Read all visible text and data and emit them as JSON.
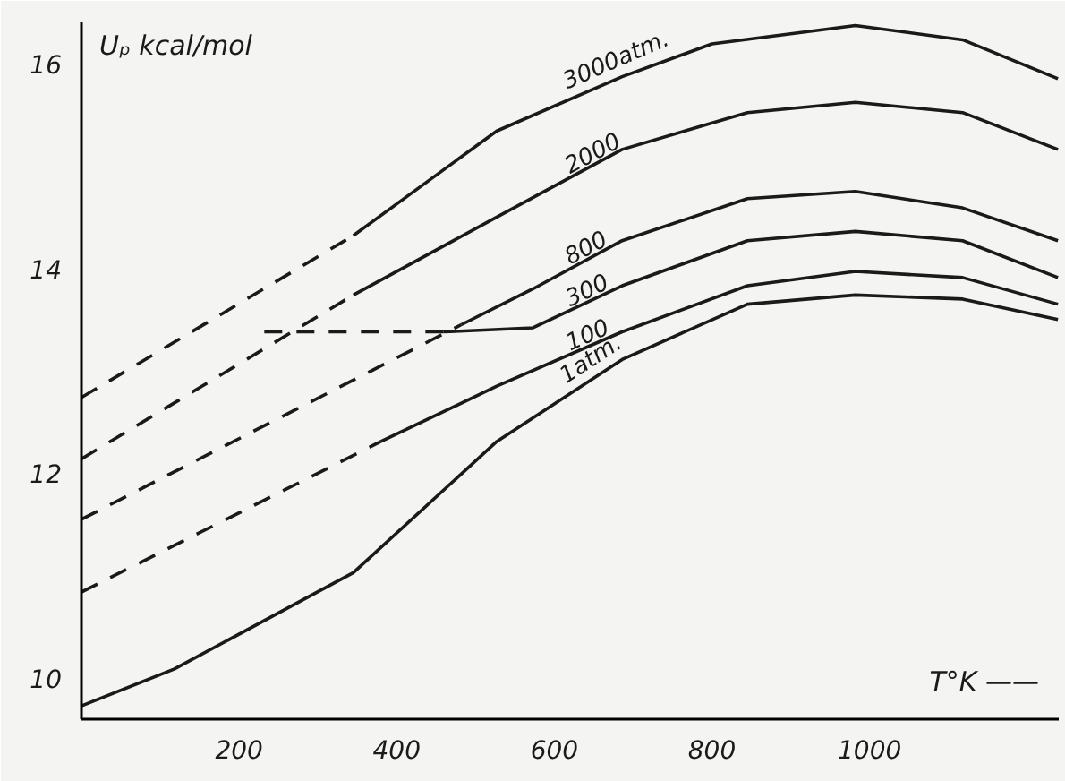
{
  "chart_data": {
    "type": "line",
    "xlabel": "T°K ——",
    "ylabel": "Uₚ kcal/mol",
    "xlim": [
      0,
      1240
    ],
    "ylim": [
      9.6,
      16.4
    ],
    "xticks": [
      200,
      400,
      600,
      800,
      1000
    ],
    "yticks": [
      10,
      12,
      14,
      16
    ],
    "grid": false,
    "marker": "none",
    "series": [
      {
        "color": "#1a1a1a",
        "line_style": "dashed",
        "x": [
          0,
          345
        ],
        "values": [
          12.74,
          14.32
        ]
      },
      {
        "name": "3000atm.",
        "color": "#1a1a1a",
        "line_style": "solid",
        "x": [
          345,
          527,
          686,
          800,
          982,
          1118,
          1239
        ],
        "values": [
          14.32,
          15.34,
          15.87,
          16.19,
          16.37,
          16.23,
          15.85
        ]
      },
      {
        "color": "#1a1a1a",
        "line_style": "dashed",
        "x": [
          0,
          345
        ],
        "values": [
          12.14,
          13.74
        ]
      },
      {
        "name": "2000",
        "color": "#1a1a1a",
        "line_style": "solid",
        "x": [
          345,
          527,
          686,
          845,
          982,
          1118,
          1239
        ],
        "values": [
          13.74,
          14.5,
          15.16,
          15.52,
          15.62,
          15.52,
          15.16
        ]
      },
      {
        "color": "#1a1a1a",
        "line_style": "dashed",
        "x": [
          0,
          482
        ],
        "values": [
          11.55,
          13.45
        ]
      },
      {
        "name": "800",
        "color": "#1a1a1a",
        "line_style": "solid",
        "x": [
          482,
          573,
          686,
          845,
          982,
          1118,
          1239
        ],
        "values": [
          13.45,
          13.8,
          14.27,
          14.68,
          14.75,
          14.59,
          14.27
        ]
      },
      {
        "color": "#1a1a1a",
        "line_style": "dashed",
        "x": [
          232,
          459
        ],
        "values": [
          13.38,
          13.38
        ]
      },
      {
        "name": "300",
        "color": "#1a1a1a",
        "line_style": "solid",
        "x": [
          459,
          573,
          686,
          845,
          982,
          1118,
          1239
        ],
        "values": [
          13.38,
          13.42,
          13.83,
          14.27,
          14.36,
          14.27,
          13.91
        ]
      },
      {
        "color": "#1a1a1a",
        "line_style": "dashed",
        "x": [
          0,
          380
        ],
        "values": [
          10.84,
          12.31
        ]
      },
      {
        "name": "100",
        "color": "#1a1a1a",
        "line_style": "solid",
        "x": [
          380,
          527,
          686,
          845,
          982,
          1118,
          1239
        ],
        "values": [
          12.31,
          12.85,
          13.38,
          13.83,
          13.97,
          13.91,
          13.65
        ]
      },
      {
        "name": "1atm.",
        "color": "#1a1a1a",
        "line_style": "solid",
        "x": [
          0,
          118,
          345,
          527,
          686,
          845,
          982,
          1118,
          1239
        ],
        "values": [
          9.73,
          10.09,
          11.03,
          12.31,
          13.11,
          13.65,
          13.74,
          13.7,
          13.5
        ]
      }
    ]
  }
}
